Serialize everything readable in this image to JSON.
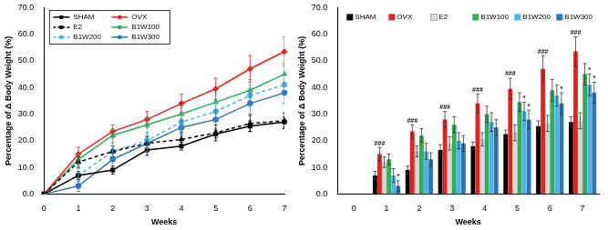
{
  "chart_data": [
    {
      "type": "line",
      "x_label": "Weeks",
      "y_label": "Percentage of Δ Body Weight (%)",
      "categories": [
        "0",
        "1",
        "2",
        "3",
        "4",
        "5",
        "6",
        "7"
      ],
      "ylim": [
        0,
        70
      ],
      "yticks": [
        {
          "value": 0,
          "label": "0.0"
        },
        {
          "value": 10,
          "label": "10.0"
        },
        {
          "value": 20,
          "label": "20.0"
        },
        {
          "value": 30,
          "label": "30.0"
        },
        {
          "value": 40,
          "label": "40.0"
        },
        {
          "value": 50,
          "label": "50.0"
        },
        {
          "value": 60,
          "label": "60.0"
        },
        {
          "value": 70,
          "label": "70.0"
        }
      ],
      "grid": false,
      "legend": "upper left",
      "series": [
        {
          "name": "SHAM",
          "color": "#000000",
          "marker": "rect",
          "line_style": "solid",
          "values": [
            0,
            7,
            9,
            16.5,
            18,
            22.5,
            25.5,
            27
          ],
          "errors": [
            0,
            1.5,
            1.5,
            2,
            1.5,
            1.5,
            2,
            2
          ]
        },
        {
          "name": "OVX",
          "color": "#e8201e",
          "marker": "rectRot",
          "line_style": "solid",
          "values": [
            0,
            15,
            23.5,
            28,
            34,
            39.5,
            47,
            53.5
          ],
          "errors": [
            0,
            2.5,
            2.5,
            3,
            3.5,
            4,
            5,
            5.5
          ]
        },
        {
          "name": "E2",
          "color": "#000000",
          "marker": "triangle",
          "line_style": "dashed",
          "values": [
            0,
            12,
            16,
            19,
            20.5,
            23,
            26.5,
            27.5
          ],
          "errors": [
            0,
            2,
            2,
            2.5,
            2.5,
            3,
            3,
            3
          ]
        },
        {
          "name": "B1W100",
          "color": "#2fae5a",
          "marker": "triangle",
          "line_style": "solid",
          "values": [
            0,
            13,
            22,
            26,
            30,
            34.5,
            39,
            45
          ],
          "errors": [
            0,
            2,
            2.5,
            3,
            3,
            3.5,
            4,
            4
          ]
        },
        {
          "name": "B1W200",
          "color": "#4fb3e8",
          "marker": "circle",
          "line_style": "dashed",
          "values": [
            0,
            7,
            16,
            20,
            27,
            31,
            37,
            41
          ],
          "errors": [
            0,
            2.5,
            3,
            3,
            3.5,
            3.5,
            4,
            4
          ]
        },
        {
          "name": "B1W300",
          "color": "#2e75b6",
          "marker": "circle",
          "line_style": "solid",
          "values": [
            0,
            3,
            13,
            19,
            25,
            28,
            34,
            38
          ],
          "errors": [
            0,
            2,
            2.5,
            3,
            3,
            3.5,
            4,
            4
          ]
        }
      ]
    },
    {
      "type": "bar",
      "x_label": "Weeks",
      "y_label": "Percentage of Δ Body Weight (%)",
      "categories": [
        "0",
        "1",
        "2",
        "3",
        "4",
        "5",
        "6",
        "7"
      ],
      "ylim": [
        0,
        70
      ],
      "yticks": [
        {
          "value": 0,
          "label": "0.0"
        },
        {
          "value": 10,
          "label": "10.0"
        },
        {
          "value": 20,
          "label": "20.0"
        },
        {
          "value": 30,
          "label": "30.0"
        },
        {
          "value": 40,
          "label": "40.0"
        },
        {
          "value": 50,
          "label": "50.0"
        },
        {
          "value": 60,
          "label": "60.0"
        },
        {
          "value": 70,
          "label": "70.0"
        }
      ],
      "grid": false,
      "legend": "upper left",
      "series": [
        {
          "name": "SHAM",
          "color": "#000000",
          "values": [
            0,
            7,
            9,
            16.5,
            18,
            22.5,
            25.5,
            27
          ],
          "errors": [
            0,
            1.5,
            1.5,
            2,
            1.5,
            1.5,
            2,
            2
          ]
        },
        {
          "name": "OVX",
          "color": "#e8201e",
          "values": [
            0,
            15,
            23.5,
            28,
            34,
            39.5,
            47,
            53.5
          ],
          "errors": [
            0,
            2.5,
            2.5,
            3,
            3.5,
            4,
            5,
            5.5
          ]
        },
        {
          "name": "E2",
          "color": "#d9d9d9",
          "values": [
            0,
            12,
            16,
            19,
            20.5,
            23,
            26.5,
            27.5
          ],
          "errors": [
            0,
            2,
            2,
            2.5,
            2.5,
            3,
            3,
            3
          ]
        },
        {
          "name": "B1W100",
          "color": "#2fae5a",
          "values": [
            0,
            13,
            22,
            26,
            30,
            34.5,
            39,
            45
          ],
          "errors": [
            0,
            2,
            2.5,
            3,
            3,
            3.5,
            4,
            4
          ]
        },
        {
          "name": "B1W200",
          "color": "#4fb3e8",
          "values": [
            0,
            7,
            16,
            20,
            27,
            31,
            37,
            41
          ],
          "errors": [
            0,
            2.5,
            3,
            3,
            3.5,
            3.5,
            4,
            4
          ]
        },
        {
          "name": "B1W300",
          "color": "#2e75b6",
          "values": [
            0,
            3,
            13,
            19,
            25,
            28,
            34,
            38
          ],
          "errors": [
            0,
            2,
            2.5,
            3,
            3,
            3.5,
            4,
            4
          ]
        }
      ],
      "annotations": [
        {
          "series": "OVX",
          "category": "1",
          "text": "###"
        },
        {
          "series": "OVX",
          "category": "2",
          "text": "###"
        },
        {
          "series": "OVX",
          "category": "3",
          "text": "###"
        },
        {
          "series": "OVX",
          "category": "4",
          "text": "###"
        },
        {
          "series": "OVX",
          "category": "5",
          "text": "###"
        },
        {
          "series": "OVX",
          "category": "6",
          "text": "###"
        },
        {
          "series": "OVX",
          "category": "7",
          "text": "###"
        },
        {
          "series": "B1W300",
          "category": "1",
          "text": "*"
        },
        {
          "series": "B1W200",
          "category": "5",
          "text": "*"
        },
        {
          "series": "B1W300",
          "category": "5",
          "text": "*"
        },
        {
          "series": "B1W300",
          "category": "6",
          "text": "*"
        },
        {
          "series": "B1W200",
          "category": "7",
          "text": "*"
        },
        {
          "series": "B1W300",
          "category": "7",
          "text": "*"
        }
      ]
    }
  ]
}
